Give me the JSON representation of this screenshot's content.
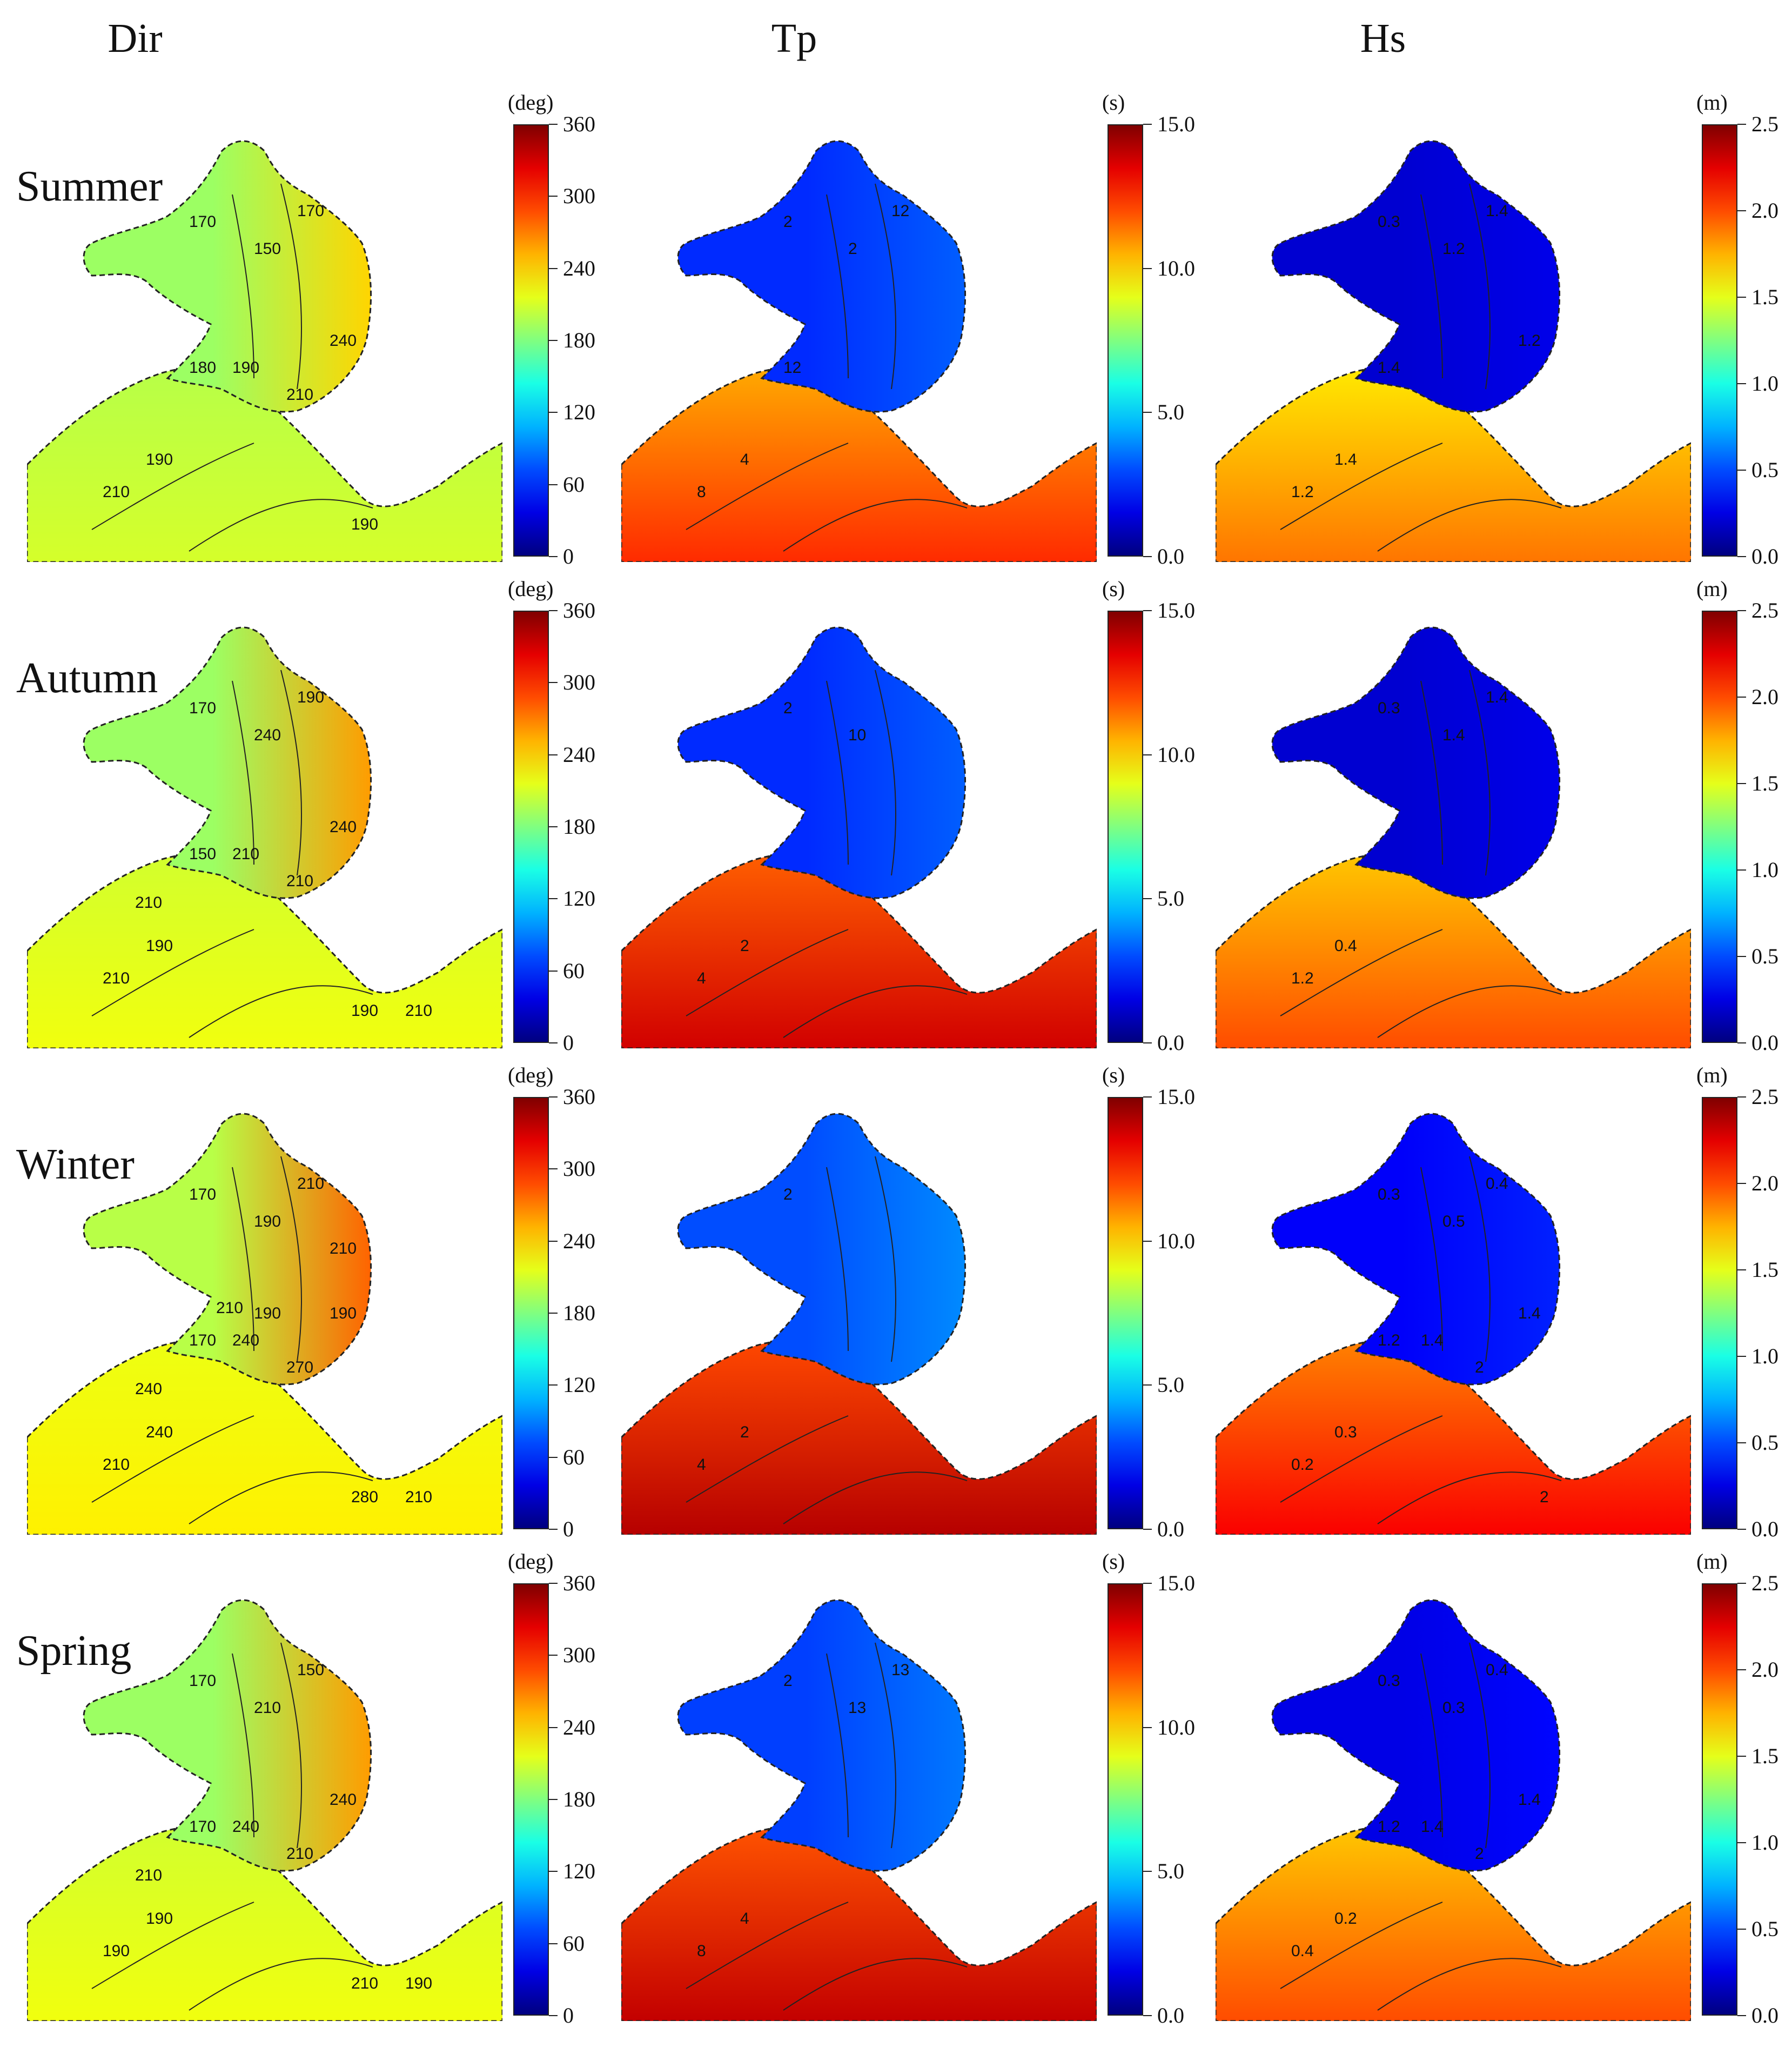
{
  "columns": [
    {
      "id": "dir",
      "title": "Dir",
      "unit": "(deg)",
      "ticks": [
        "0",
        "60",
        "120",
        "180",
        "240",
        "300",
        "360"
      ],
      "min": 0,
      "max": 360
    },
    {
      "id": "tp",
      "title": "Tp",
      "unit": "(s)",
      "ticks": [
        "0.0",
        "5.0",
        "10.0",
        "15.0"
      ],
      "min": 0,
      "max": 15
    },
    {
      "id": "hs",
      "title": "Hs",
      "unit": "(m)",
      "ticks": [
        "0.0",
        "0.5",
        "1.0",
        "1.5",
        "2.0",
        "2.5"
      ],
      "min": 0,
      "max": 2.5
    }
  ],
  "seasons": [
    {
      "name": "Summer",
      "dir": {
        "open_sea": 210,
        "bay": 190,
        "east": 240,
        "labels": [
          "170",
          "190",
          "210",
          "150",
          "170",
          "180",
          "240",
          "190",
          "210",
          "190"
        ]
      },
      "tp": {
        "open_sea": 12.5,
        "bay": 2.5,
        "labels": [
          "2",
          "4",
          "8",
          "2",
          "12",
          "12"
        ]
      },
      "hs": {
        "open_sea": 1.9,
        "bay": 0.2,
        "labels": [
          "0.3",
          "1.4",
          "1.2",
          "1.2",
          "1.4",
          "1.4",
          "1.2"
        ]
      }
    },
    {
      "name": "Autumn",
      "dir": {
        "open_sea": 220,
        "bay": 190,
        "east": 260,
        "labels": [
          "170",
          "190",
          "210",
          "240",
          "190",
          "150",
          "240",
          "210",
          "210",
          "190",
          "210",
          "210"
        ]
      },
      "tp": {
        "open_sea": 13.8,
        "bay": 2.5,
        "labels": [
          "2",
          "2",
          "4",
          "10"
        ]
      },
      "hs": {
        "open_sea": 2.0,
        "bay": 0.2,
        "labels": [
          "0.3",
          "0.4",
          "1.2",
          "1.4",
          "1.4"
        ]
      }
    },
    {
      "name": "Winter",
      "dir": {
        "open_sea": 230,
        "bay": 200,
        "east": 280,
        "labels": [
          "170",
          "240",
          "210",
          "190",
          "210",
          "170",
          "190",
          "240",
          "270",
          "280",
          "210",
          "240",
          "190",
          "210",
          "210"
        ]
      },
      "tp": {
        "open_sea": 14.2,
        "bay": 3.0,
        "labels": [
          "2",
          "2",
          "4"
        ]
      },
      "hs": {
        "open_sea": 2.2,
        "bay": 0.3,
        "labels": [
          "0.3",
          "0.3",
          "0.2",
          "0.5",
          "0.4",
          "1.2",
          "1.4",
          "1.4",
          "2",
          "2"
        ]
      }
    },
    {
      "name": "Spring",
      "dir": {
        "open_sea": 220,
        "bay": 190,
        "east": 260,
        "labels": [
          "170",
          "190",
          "190",
          "210",
          "150",
          "170",
          "240",
          "240",
          "210",
          "210",
          "190",
          "210"
        ]
      },
      "tp": {
        "open_sea": 14.0,
        "bay": 2.8,
        "labels": [
          "2",
          "4",
          "8",
          "13",
          "13"
        ]
      },
      "hs": {
        "open_sea": 2.0,
        "bay": 0.25,
        "labels": [
          "0.3",
          "0.2",
          "0.4",
          "0.3",
          "0.4",
          "1.2",
          "1.4",
          "1.4",
          "2"
        ]
      }
    }
  ]
}
